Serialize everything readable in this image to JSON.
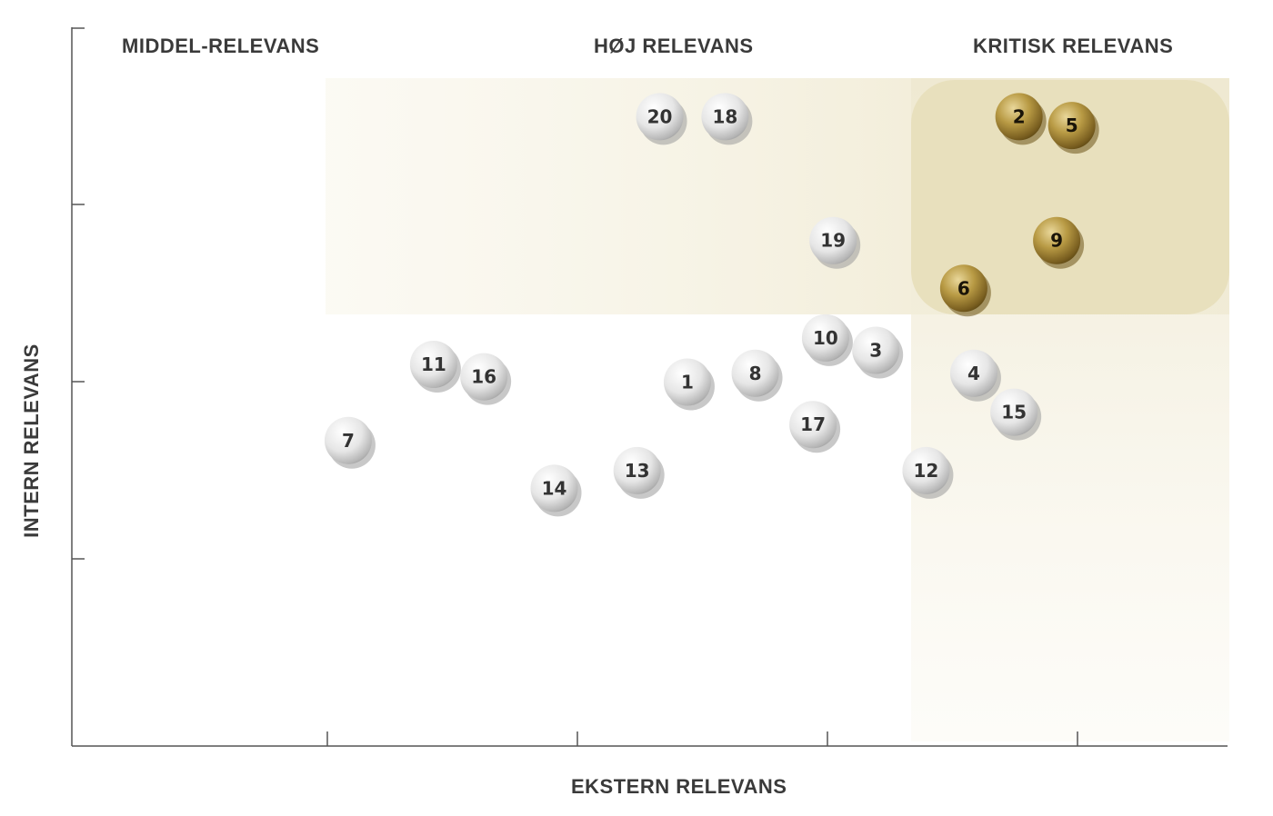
{
  "chart_data": {
    "type": "scatter",
    "title": "",
    "xlabel": "EKSTERN RELEVANS",
    "ylabel": "INTERN RELEVANS",
    "xlim": [
      0,
      4.6
    ],
    "ylim": [
      0,
      4
    ],
    "zones": [
      {
        "label": "MIDDEL-RELEVANS",
        "color": "#f3eed9"
      },
      {
        "label": "HØJ RELEVANS",
        "color": "#f3eed9"
      },
      {
        "label": "KRITISK RELEVANS",
        "color": "#e9e1be"
      }
    ],
    "points": [
      {
        "id": "1",
        "x": 2.45,
        "y": 2.0,
        "critical": false
      },
      {
        "id": "2",
        "x": 3.77,
        "y": 3.5,
        "critical": true
      },
      {
        "id": "3",
        "x": 3.2,
        "y": 2.18,
        "critical": false
      },
      {
        "id": "4",
        "x": 3.59,
        "y": 2.05,
        "critical": false
      },
      {
        "id": "5",
        "x": 3.98,
        "y": 3.45,
        "critical": true
      },
      {
        "id": "6",
        "x": 3.55,
        "y": 2.53,
        "critical": true
      },
      {
        "id": "7",
        "x": 1.1,
        "y": 1.67,
        "critical": false
      },
      {
        "id": "8",
        "x": 2.72,
        "y": 2.05,
        "critical": false
      },
      {
        "id": "9",
        "x": 3.92,
        "y": 2.8,
        "critical": true
      },
      {
        "id": "10",
        "x": 3.0,
        "y": 2.25,
        "critical": false
      },
      {
        "id": "11",
        "x": 1.44,
        "y": 2.1,
        "critical": false
      },
      {
        "id": "12",
        "x": 3.4,
        "y": 1.5,
        "critical": false
      },
      {
        "id": "13",
        "x": 2.25,
        "y": 1.5,
        "critical": false
      },
      {
        "id": "14",
        "x": 1.92,
        "y": 1.4,
        "critical": false
      },
      {
        "id": "15",
        "x": 3.75,
        "y": 1.83,
        "critical": false
      },
      {
        "id": "16",
        "x": 1.64,
        "y": 2.03,
        "critical": false
      },
      {
        "id": "17",
        "x": 2.95,
        "y": 1.76,
        "critical": false
      },
      {
        "id": "18",
        "x": 2.6,
        "y": 3.5,
        "critical": false
      },
      {
        "id": "19",
        "x": 3.03,
        "y": 2.8,
        "critical": false
      },
      {
        "id": "20",
        "x": 2.34,
        "y": 3.5,
        "critical": false
      }
    ]
  }
}
